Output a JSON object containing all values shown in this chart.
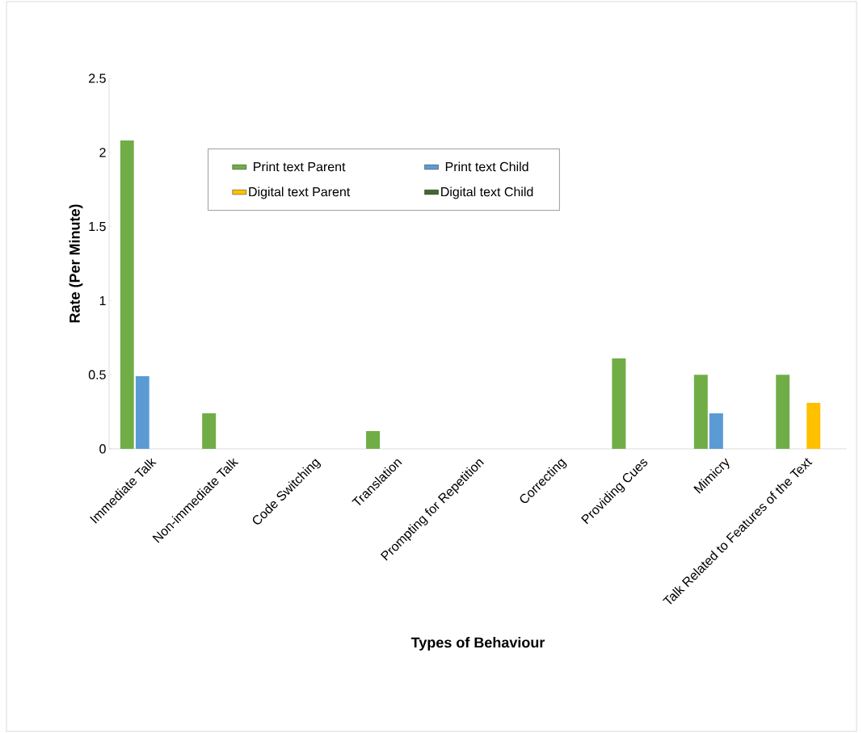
{
  "chart_data": {
    "type": "bar",
    "xlabel": "Types of Behaviour",
    "ylabel": "Rate (Per Minute)",
    "categories": [
      "Immediate Talk",
      "Non-immediate Talk",
      "Code Switching",
      "Translation",
      "Prompting for Repetition",
      "Correcting",
      "Providing Cues",
      "Mimicry",
      "Talk Related to Features of the Text"
    ],
    "series": [
      {
        "name": "Print text Parent",
        "color": "#70ad47",
        "values": [
          2.08,
          0.24,
          0,
          0.12,
          0,
          0,
          0.61,
          0.5,
          0.5
        ]
      },
      {
        "name": "Print text Child",
        "color": "#5b9bd5",
        "values": [
          0.49,
          0,
          0,
          0,
          0,
          0,
          0,
          0.24,
          0
        ]
      },
      {
        "name": "Digital text Parent",
        "color": "#ffc000",
        "values": [
          0,
          0,
          0,
          0,
          0,
          0,
          0,
          0,
          0.31
        ]
      },
      {
        "name": "Digital text Child",
        "color": "#43682b",
        "values": [
          0,
          0,
          0,
          0,
          0,
          0,
          0,
          0,
          0
        ]
      }
    ],
    "ylim": [
      0,
      2.5
    ],
    "yticks": [
      0,
      0.5,
      1,
      1.5,
      2,
      2.5
    ],
    "legend": "top",
    "grid": false
  }
}
